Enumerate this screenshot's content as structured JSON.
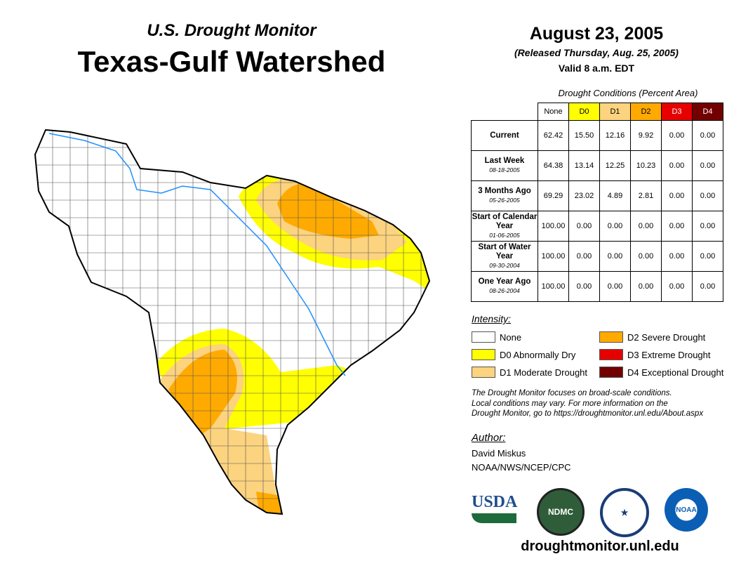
{
  "header": {
    "subtitle": "U.S. Drought Monitor",
    "title": "Texas-Gulf Watershed",
    "date": "August 23, 2005",
    "released": "(Released Thursday, Aug. 25, 2005)",
    "valid": "Valid 8 a.m. EDT"
  },
  "table": {
    "caption": "Drought Conditions (Percent Area)",
    "columns": [
      {
        "label": "None",
        "color": "#ffffff",
        "text": "#000"
      },
      {
        "label": "D0",
        "color": "#ffff00",
        "text": "#000"
      },
      {
        "label": "D1",
        "color": "#fcd37f",
        "text": "#000"
      },
      {
        "label": "D2",
        "color": "#ffaa00",
        "text": "#000"
      },
      {
        "label": "D3",
        "color": "#e60000",
        "text": "#fff"
      },
      {
        "label": "D4",
        "color": "#730000",
        "text": "#fff"
      }
    ],
    "rows": [
      {
        "label": "Current",
        "date": "",
        "values": [
          "62.42",
          "15.50",
          "12.16",
          "9.92",
          "0.00",
          "0.00"
        ]
      },
      {
        "label": "Last Week",
        "date": "08-18-2005",
        "values": [
          "64.38",
          "13.14",
          "12.25",
          "10.23",
          "0.00",
          "0.00"
        ]
      },
      {
        "label": "3 Months Ago",
        "date": "05-26-2005",
        "values": [
          "69.29",
          "23.02",
          "4.89",
          "2.81",
          "0.00",
          "0.00"
        ]
      },
      {
        "label": "Start of Calendar Year",
        "date": "01-06-2005",
        "values": [
          "100.00",
          "0.00",
          "0.00",
          "0.00",
          "0.00",
          "0.00"
        ]
      },
      {
        "label": "Start of Water Year",
        "date": "09-30-2004",
        "values": [
          "100.00",
          "0.00",
          "0.00",
          "0.00",
          "0.00",
          "0.00"
        ]
      },
      {
        "label": "One Year Ago",
        "date": "08-26-2004",
        "values": [
          "100.00",
          "0.00",
          "0.00",
          "0.00",
          "0.00",
          "0.00"
        ]
      }
    ]
  },
  "legend": {
    "title": "Intensity:",
    "items": [
      {
        "label": "None",
        "color": "#ffffff"
      },
      {
        "label": "D0 Abnormally Dry",
        "color": "#ffff00"
      },
      {
        "label": "D1 Moderate Drought",
        "color": "#fcd37f"
      },
      {
        "label": "D2 Severe Drought",
        "color": "#ffaa00"
      },
      {
        "label": "D3 Extreme Drought",
        "color": "#e60000"
      },
      {
        "label": "D4 Exceptional Drought",
        "color": "#730000"
      }
    ]
  },
  "note": [
    "The Drought Monitor focuses on broad-scale conditions.",
    "Local conditions may vary. For more information on the",
    "Drought Monitor, go to https://droughtmonitor.unl.edu/About.aspx"
  ],
  "author": {
    "title": "Author:",
    "name": "David Miskus",
    "org": "NOAA/NWS/NCEP/CPC"
  },
  "logos": {
    "usda": "USDA",
    "ndmc": "NDMC",
    "noaa": "NOAA"
  },
  "url": "droughtmonitor.unl.edu"
}
